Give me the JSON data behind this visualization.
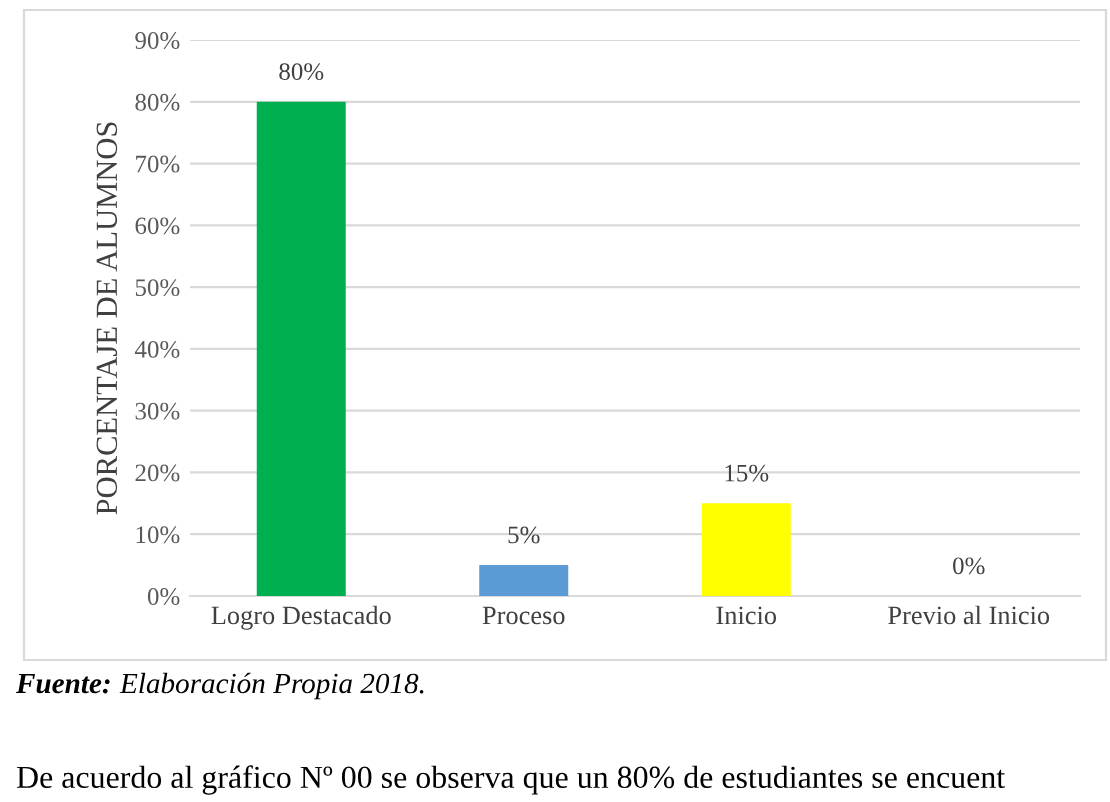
{
  "chart_data": {
    "type": "bar",
    "ylabel": "PORCENTAJE DE ALUMNOS",
    "categories": [
      "Logro Destacado",
      "Proceso",
      "Inicio",
      "Previo al Inicio"
    ],
    "values": [
      80,
      5,
      15,
      0
    ],
    "colors": [
      "#00b050",
      "#5b9bd5",
      "#ffff00",
      "#a5a5a5"
    ],
    "value_labels": [
      "80%",
      "5%",
      "15%",
      "0%"
    ],
    "ylim": [
      0,
      90
    ],
    "yticks": [
      {
        "value": 0,
        "label": "0%"
      },
      {
        "value": 10,
        "label": "10%"
      },
      {
        "value": 20,
        "label": "20%"
      },
      {
        "value": 30,
        "label": "30%"
      },
      {
        "value": 40,
        "label": "40%"
      },
      {
        "value": 50,
        "label": "50%"
      },
      {
        "value": 60,
        "label": "60%"
      },
      {
        "value": 70,
        "label": "70%"
      },
      {
        "value": 80,
        "label": "80%"
      },
      {
        "value": 90,
        "label": "90%"
      }
    ],
    "grid": "y",
    "legend": false,
    "annotations": [
      "Fuente: Elaboración Propia 2018.",
      "De acuerdo al gráfico Nº 00 se observa que un 80% de estudiantes se encuent"
    ]
  }
}
